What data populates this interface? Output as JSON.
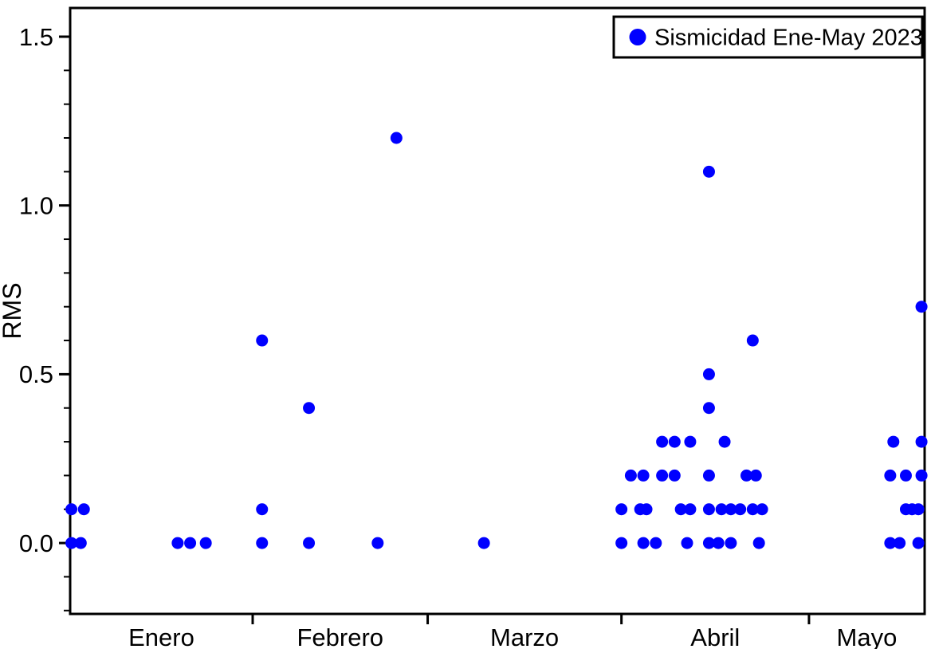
{
  "chart_data": {
    "type": "scatter",
    "title": "",
    "xlabel": "",
    "ylabel": "RMS",
    "legend": {
      "label": "Sismicidad Ene-May 2023",
      "position": "top-right"
    },
    "point_color": "#0000ff",
    "axis_color": "#000000",
    "background_color": "#ffffff",
    "grid": false,
    "x_unit": "day_of_year_2023",
    "xlim_day_of_year": [
      2.8,
      139.5
    ],
    "ylim": [
      -0.21,
      1.585
    ],
    "y_major_ticks": [
      0.0,
      0.5,
      1.0,
      1.5
    ],
    "y_major_tick_labels": [
      "0.0",
      "0.5",
      "1.0",
      "1.5"
    ],
    "y_minor_tick_step": 0.1,
    "x_boundary_ticks_doy": [
      32,
      60,
      91,
      121
    ],
    "months": [
      {
        "label": "Enero",
        "start_doy": 2.8,
        "end_doy": 32
      },
      {
        "label": "Febrero",
        "start_doy": 32,
        "end_doy": 60
      },
      {
        "label": "Marzo",
        "start_doy": 60,
        "end_doy": 91
      },
      {
        "label": "Abril",
        "start_doy": 91,
        "end_doy": 121
      },
      {
        "label": "Mayo",
        "start_doy": 121,
        "end_doy": 139.5
      }
    ],
    "points_doy_rms": [
      [
        3,
        0.1
      ],
      [
        5,
        0.1
      ],
      [
        3,
        0.0
      ],
      [
        4.5,
        0.0
      ],
      [
        20,
        0.0
      ],
      [
        22,
        0.0
      ],
      [
        24.5,
        0.0
      ],
      [
        33.5,
        0.6
      ],
      [
        33.5,
        0.1
      ],
      [
        33.5,
        0.0
      ],
      [
        41,
        0.4
      ],
      [
        41,
        0.0
      ],
      [
        52,
        0.0
      ],
      [
        55,
        1.2
      ],
      [
        69,
        0.0
      ],
      [
        91,
        0.0
      ],
      [
        91,
        0.1
      ],
      [
        92.5,
        0.2
      ],
      [
        94,
        0.1
      ],
      [
        94.5,
        0.0
      ],
      [
        94.5,
        0.2
      ],
      [
        95,
        0.1
      ],
      [
        96.5,
        0.0
      ],
      [
        97.5,
        0.2
      ],
      [
        97.5,
        0.3
      ],
      [
        99.5,
        0.2
      ],
      [
        99.5,
        0.3
      ],
      [
        100.5,
        0.1
      ],
      [
        101.5,
        0.0
      ],
      [
        102,
        0.1
      ],
      [
        102,
        0.3
      ],
      [
        105,
        0.0
      ],
      [
        105,
        0.1
      ],
      [
        105,
        0.2
      ],
      [
        105,
        0.4
      ],
      [
        105,
        0.5
      ],
      [
        105,
        1.1
      ],
      [
        106.5,
        0.0
      ],
      [
        107,
        0.1
      ],
      [
        107.5,
        0.3
      ],
      [
        108.5,
        0.0
      ],
      [
        108.5,
        0.1
      ],
      [
        110,
        0.1
      ],
      [
        111,
        0.2
      ],
      [
        112,
        0.1
      ],
      [
        112,
        0.6
      ],
      [
        112.5,
        0.2
      ],
      [
        113,
        0.0
      ],
      [
        113.5,
        0.1
      ],
      [
        134,
        0.0
      ],
      [
        134,
        0.2
      ],
      [
        134.5,
        0.3
      ],
      [
        135.5,
        0.0
      ],
      [
        136.5,
        0.1
      ],
      [
        136.5,
        0.2
      ],
      [
        137.5,
        0.1
      ],
      [
        138.5,
        0.0
      ],
      [
        138.5,
        0.1
      ],
      [
        139,
        0.2
      ],
      [
        139,
        0.3
      ],
      [
        139,
        0.7
      ]
    ]
  }
}
